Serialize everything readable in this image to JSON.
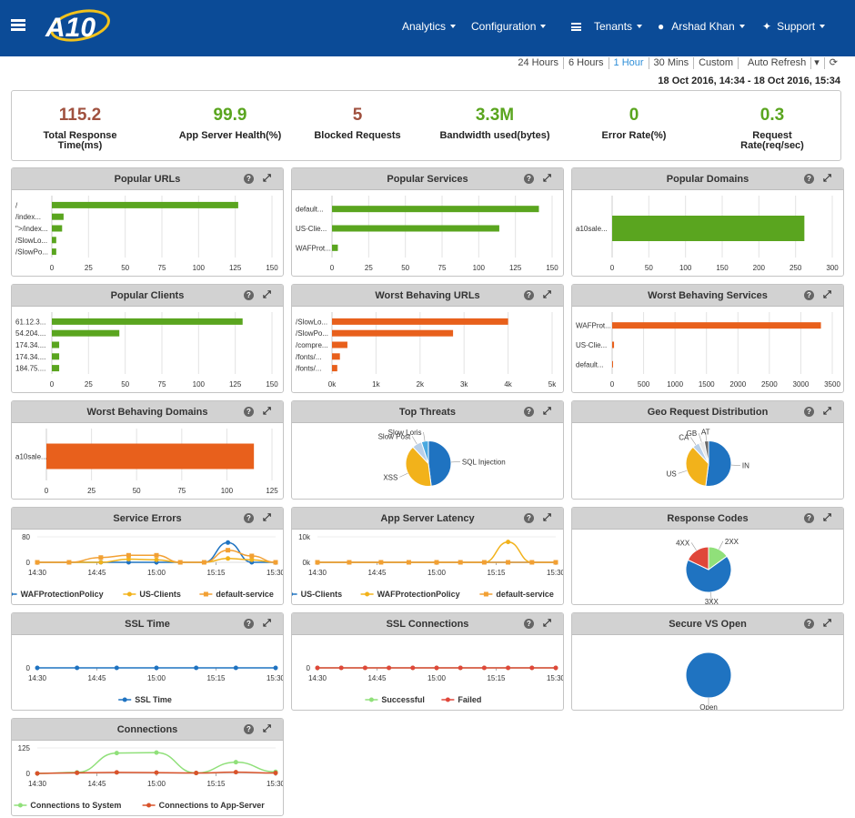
{
  "header": {
    "logo_text": "A10",
    "nav": {
      "analytics": "Analytics",
      "configuration": "Configuration",
      "tenants": "Tenants",
      "user": "Arshad Khan",
      "support": "Support"
    }
  },
  "timebar": {
    "options": [
      "24 Hours",
      "6 Hours",
      "1 Hour",
      "30 Mins",
      "Custom",
      "Auto Refresh"
    ],
    "active": "1 Hour"
  },
  "date_range": "18 Oct 2016, 14:34 - 18 Oct 2016, 15:34",
  "summary": [
    {
      "value": "115.2",
      "label": "Total Response Time(ms)",
      "color": "#a0513f"
    },
    {
      "value": "99.9",
      "label": "App Server Health(%)",
      "color": "#5aa51f"
    },
    {
      "value": "5",
      "label": "Blocked Requests",
      "color": "#a0513f"
    },
    {
      "value": "3.3M",
      "label": "Bandwidth used(bytes)",
      "color": "#5aa51f"
    },
    {
      "value": "0",
      "label": "Error Rate(%)",
      "color": "#5aa51f"
    },
    {
      "value": "0.3",
      "label": "Request Rate(req/sec)",
      "color": "#5aa51f"
    }
  ],
  "chart_data": [
    {
      "id": "popular-urls",
      "title": "Popular URLs",
      "type": "bar",
      "orientation": "horizontal",
      "color": "#5aa51f",
      "categories": [
        "/",
        "/index...",
        "\">/index...",
        "/SlowLo...",
        "/SlowPo..."
      ],
      "values": [
        127,
        8,
        7,
        3,
        3
      ],
      "xticks": [
        0,
        25,
        50,
        75,
        100,
        125,
        150
      ],
      "xlim": [
        0,
        150
      ]
    },
    {
      "id": "popular-services",
      "title": "Popular Services",
      "type": "bar",
      "orientation": "horizontal",
      "color": "#5aa51f",
      "categories": [
        "default...",
        "US-Clie...",
        "WAFProt..."
      ],
      "values": [
        141,
        114,
        4
      ],
      "xticks": [
        0,
        25,
        50,
        75,
        100,
        125,
        150
      ],
      "xlim": [
        0,
        150
      ]
    },
    {
      "id": "popular-domains",
      "title": "Popular Domains",
      "type": "bar",
      "orientation": "horizontal",
      "color": "#5aa51f",
      "categories": [
        "a10sale..."
      ],
      "values": [
        262
      ],
      "xticks": [
        0,
        50,
        100,
        150,
        200,
        250,
        300
      ],
      "xlim": [
        0,
        300
      ]
    },
    {
      "id": "popular-clients",
      "title": "Popular Clients",
      "type": "bar",
      "orientation": "horizontal",
      "color": "#5aa51f",
      "categories": [
        "61.12.3...",
        "54.204....",
        "174.34....",
        "174.34....",
        "184.75...."
      ],
      "values": [
        130,
        46,
        5,
        5,
        5
      ],
      "xticks": [
        0,
        25,
        50,
        75,
        100,
        125,
        150
      ],
      "xlim": [
        0,
        150
      ]
    },
    {
      "id": "worst-urls",
      "title": "Worst Behaving URLs",
      "type": "bar",
      "orientation": "horizontal",
      "color": "#e8601c",
      "categories": [
        "/SlowLo...",
        "/SlowPo...",
        "/compre...",
        "/fonts/...",
        "/fonts/..."
      ],
      "values": [
        4000,
        2750,
        350,
        180,
        120
      ],
      "xticks": [
        "0k",
        "1k",
        "2k",
        "3k",
        "4k",
        "5k"
      ],
      "xlim": [
        0,
        5000
      ]
    },
    {
      "id": "worst-services",
      "title": "Worst Behaving Services",
      "type": "bar",
      "orientation": "horizontal",
      "color": "#e8601c",
      "categories": [
        "WAFProt...",
        "US-Clie...",
        "default..."
      ],
      "values": [
        3320,
        30,
        5
      ],
      "xticks": [
        0,
        500,
        1000,
        1500,
        2000,
        2500,
        3000,
        3500
      ],
      "xlim": [
        0,
        3500
      ]
    },
    {
      "id": "worst-domains",
      "title": "Worst Behaving Domains",
      "type": "bar",
      "orientation": "horizontal",
      "color": "#e8601c",
      "categories": [
        "a10sale..."
      ],
      "values": [
        115
      ],
      "xticks": [
        0,
        25,
        50,
        75,
        100,
        125
      ],
      "xlim": [
        0,
        125
      ]
    },
    {
      "id": "top-threats",
      "title": "Top Threats",
      "type": "pie",
      "slices": [
        {
          "label": "SQL Injection",
          "value": 48,
          "color": "#1f73c1"
        },
        {
          "label": "XSS",
          "value": 40,
          "color": "#f2b21b"
        },
        {
          "label": "Slow Post",
          "value": 7,
          "color": "#b9cfe7"
        },
        {
          "label": "Slow Loris",
          "value": 5,
          "color": "#4aa9e0"
        }
      ]
    },
    {
      "id": "geo-requests",
      "title": "Geo Request Distribution",
      "type": "pie",
      "slices": [
        {
          "label": "IN",
          "value": 52,
          "color": "#1f73c1"
        },
        {
          "label": "US",
          "value": 36,
          "color": "#f2b21b"
        },
        {
          "label": "CA",
          "value": 5,
          "color": "#b9cfe7"
        },
        {
          "label": "GB",
          "value": 4,
          "color": "#e8e8e8"
        },
        {
          "label": "AT",
          "value": 3,
          "color": "#666666"
        }
      ]
    },
    {
      "id": "service-errors",
      "title": "Service Errors",
      "type": "line",
      "x": [
        "14:30",
        "14:45",
        "15:00",
        "15:15",
        "15:30"
      ],
      "yticks": [
        0,
        80
      ],
      "ylim": [
        0,
        80
      ],
      "series": [
        {
          "name": "WAFProtectionPolicy",
          "color": "#1f73c1",
          "marker": "circle",
          "points": [
            [
              0,
              0
            ],
            [
              8,
              0
            ],
            [
              16,
              0
            ],
            [
              23,
              0
            ],
            [
              30,
              0
            ],
            [
              36,
              0
            ],
            [
              42,
              0
            ],
            [
              48,
              62
            ],
            [
              54,
              0
            ],
            [
              60,
              0
            ]
          ]
        },
        {
          "name": "US-Clients",
          "color": "#f2b21b",
          "marker": "circle",
          "points": [
            [
              0,
              0
            ],
            [
              8,
              0
            ],
            [
              16,
              0
            ],
            [
              23,
              10
            ],
            [
              30,
              8
            ],
            [
              36,
              0
            ],
            [
              42,
              0
            ],
            [
              48,
              12
            ],
            [
              54,
              8
            ],
            [
              60,
              0
            ]
          ]
        },
        {
          "name": "default-service",
          "color": "#f2a033",
          "marker": "square",
          "points": [
            [
              0,
              0
            ],
            [
              8,
              0
            ],
            [
              16,
              15
            ],
            [
              23,
              22
            ],
            [
              30,
              22
            ],
            [
              36,
              0
            ],
            [
              42,
              0
            ],
            [
              48,
              38
            ],
            [
              54,
              20
            ],
            [
              60,
              0
            ]
          ]
        }
      ]
    },
    {
      "id": "app-server-latency",
      "title": "App Server Latency",
      "type": "line",
      "x": [
        "14:30",
        "14:45",
        "15:00",
        "15:15",
        "15:30"
      ],
      "yticks": [
        "0k",
        "10k"
      ],
      "ylim": [
        0,
        10000
      ],
      "series": [
        {
          "name": "US-Clients",
          "color": "#1f73c1",
          "marker": "circle",
          "points": [
            [
              0,
              0
            ],
            [
              8,
              0
            ],
            [
              16,
              0
            ],
            [
              23,
              0
            ],
            [
              30,
              0
            ],
            [
              36,
              0
            ],
            [
              42,
              0
            ],
            [
              48,
              0
            ],
            [
              54,
              0
            ],
            [
              60,
              0
            ]
          ]
        },
        {
          "name": "WAFProtectionPolicy",
          "color": "#f2b21b",
          "marker": "circle",
          "points": [
            [
              0,
              0
            ],
            [
              8,
              0
            ],
            [
              16,
              0
            ],
            [
              23,
              0
            ],
            [
              30,
              0
            ],
            [
              36,
              0
            ],
            [
              42,
              0
            ],
            [
              48,
              8000
            ],
            [
              54,
              0
            ],
            [
              60,
              0
            ]
          ]
        },
        {
          "name": "default-service",
          "color": "#f2a033",
          "marker": "square",
          "points": [
            [
              0,
              0
            ],
            [
              8,
              0
            ],
            [
              16,
              0
            ],
            [
              23,
              0
            ],
            [
              30,
              0
            ],
            [
              36,
              0
            ],
            [
              42,
              0
            ],
            [
              48,
              0
            ],
            [
              54,
              0
            ],
            [
              60,
              0
            ]
          ]
        }
      ]
    },
    {
      "id": "response-codes",
      "title": "Response Codes",
      "type": "pie",
      "slices": [
        {
          "label": "2XX",
          "value": 15,
          "color": "#90e07a"
        },
        {
          "label": "3XX",
          "value": 67,
          "color": "#1f73c1"
        },
        {
          "label": "4XX",
          "value": 18,
          "color": "#e0473a"
        }
      ]
    },
    {
      "id": "ssl-time",
      "title": "SSL Time",
      "type": "line",
      "x": [
        "14:30",
        "14:45",
        "15:00",
        "15:15",
        "15:30"
      ],
      "yticks": [
        0
      ],
      "ylim": [
        0,
        1
      ],
      "series": [
        {
          "name": "SSL Time",
          "color": "#1f73c1",
          "marker": "circle",
          "points": [
            [
              0,
              0
            ],
            [
              10,
              0
            ],
            [
              20,
              0
            ],
            [
              30,
              0
            ],
            [
              40,
              0
            ],
            [
              50,
              0
            ],
            [
              60,
              0
            ]
          ]
        }
      ]
    },
    {
      "id": "ssl-connections",
      "title": "SSL Connections",
      "type": "line",
      "x": [
        "14:30",
        "14:45",
        "15:00",
        "15:15",
        "15:30"
      ],
      "yticks": [
        0
      ],
      "ylim": [
        0,
        1
      ],
      "series": [
        {
          "name": "Successful",
          "color": "#90e07a",
          "marker": "circle",
          "points": [
            [
              0,
              0
            ],
            [
              6,
              0
            ],
            [
              12,
              0
            ],
            [
              18,
              0
            ],
            [
              24,
              0
            ],
            [
              30,
              0
            ],
            [
              36,
              0
            ],
            [
              42,
              0
            ],
            [
              48,
              0
            ],
            [
              54,
              0
            ],
            [
              60,
              0
            ]
          ]
        },
        {
          "name": "Failed",
          "color": "#e0473a",
          "marker": "circle",
          "points": [
            [
              0,
              0
            ],
            [
              6,
              0
            ],
            [
              12,
              0
            ],
            [
              18,
              0
            ],
            [
              24,
              0
            ],
            [
              30,
              0
            ],
            [
              36,
              0
            ],
            [
              42,
              0
            ],
            [
              48,
              0
            ],
            [
              54,
              0
            ],
            [
              60,
              0
            ]
          ]
        }
      ]
    },
    {
      "id": "secure-vs-open",
      "title": "Secure VS Open",
      "type": "pie",
      "slices": [
        {
          "label": "Open",
          "value": 100,
          "color": "#1f73c1"
        }
      ]
    },
    {
      "id": "connections",
      "title": "Connections",
      "type": "line",
      "x": [
        "14:30",
        "14:45",
        "15:00",
        "15:15",
        "15:30"
      ],
      "yticks": [
        0,
        125
      ],
      "ylim": [
        0,
        125
      ],
      "series": [
        {
          "name": "Connections to System",
          "color": "#90e07a",
          "marker": "circle",
          "points": [
            [
              0,
              0
            ],
            [
              10,
              5
            ],
            [
              20,
              100
            ],
            [
              30,
              102
            ],
            [
              40,
              2
            ],
            [
              50,
              55
            ],
            [
              60,
              8
            ]
          ]
        },
        {
          "name": "Connections to App-Server",
          "color": "#d9532b",
          "marker": "circle",
          "points": [
            [
              0,
              0
            ],
            [
              10,
              3
            ],
            [
              20,
              5
            ],
            [
              30,
              4
            ],
            [
              40,
              2
            ],
            [
              50,
              6
            ],
            [
              60,
              2
            ]
          ]
        }
      ]
    }
  ]
}
